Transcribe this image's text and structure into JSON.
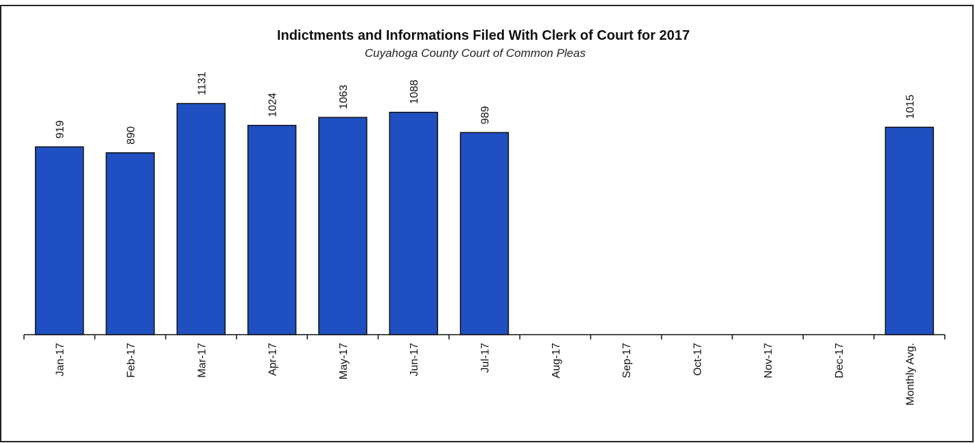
{
  "chart_data": {
    "type": "bar",
    "title": "Indictments and Informations Filed With Clerk of Court for 2017",
    "subtitle": "Cuyahoga County Court of Common Pleas",
    "categories": [
      "Jan-17",
      "Feb-17",
      "Mar-17",
      "Apr-17",
      "May-17",
      "Jun-17",
      "Jul-17",
      "Aug-17",
      "Sep-17",
      "Oct-17",
      "Nov-17",
      "Dec-17",
      "Monthly Avg."
    ],
    "values": [
      919,
      890,
      1131,
      1024,
      1063,
      1088,
      989,
      null,
      null,
      null,
      null,
      null,
      1015
    ],
    "color": "#1f4fc0"
  }
}
